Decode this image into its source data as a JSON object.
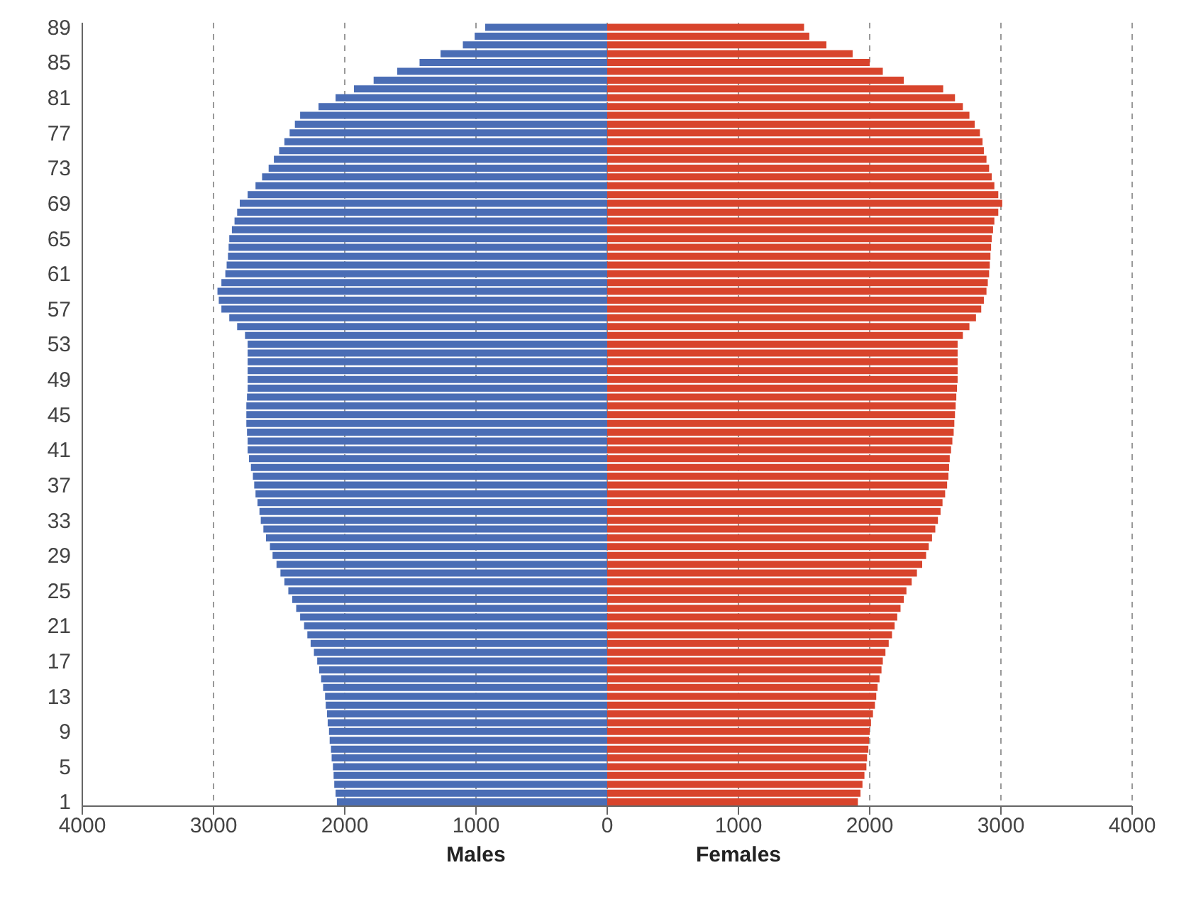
{
  "chart_data": {
    "type": "bar",
    "orientation": "horizontal",
    "stacked": true,
    "legend": false,
    "grid": "x",
    "categories": [
      "89",
      null,
      null,
      null,
      "85",
      null,
      null,
      null,
      "81",
      null,
      null,
      null,
      "77",
      null,
      null,
      null,
      "73",
      null,
      null,
      null,
      "69",
      null,
      null,
      null,
      "65",
      null,
      null,
      null,
      "61",
      null,
      null,
      null,
      "57",
      null,
      null,
      null,
      "53",
      null,
      null,
      null,
      "49",
      null,
      null,
      null,
      "45",
      null,
      null,
      null,
      "41",
      null,
      null,
      null,
      "37",
      null,
      null,
      null,
      "33",
      null,
      null,
      null,
      "29",
      null,
      null,
      null,
      "25",
      null,
      null,
      null,
      "21",
      null,
      null,
      null,
      "17",
      null,
      null,
      null,
      "13",
      null,
      null,
      null,
      "9",
      null,
      null,
      null,
      "5",
      null,
      null,
      null,
      "1"
    ],
    "xlim": [
      -4000,
      4000
    ],
    "xticks": [
      {
        "value": -4000,
        "label": "4000"
      },
      {
        "value": -3000,
        "label": "3000"
      },
      {
        "value": -2000,
        "label": "2000"
      },
      {
        "value": -1000,
        "label": "1000"
      },
      0,
      1000,
      2000,
      3000,
      4000
    ],
    "series": [
      {
        "name": "Males",
        "color": "#4a6db5",
        "values": [
          -930,
          -1010,
          -1100,
          -1270,
          -1430,
          -1600,
          -1780,
          -1930,
          -2070,
          -2200,
          -2340,
          -2380,
          -2420,
          -2460,
          -2500,
          -2540,
          -2580,
          -2630,
          -2680,
          -2740,
          -2800,
          -2820,
          -2840,
          -2860,
          -2880,
          -2885,
          -2890,
          -2900,
          -2910,
          -2940,
          -2970,
          -2960,
          -2940,
          -2880,
          -2820,
          -2760,
          -2740,
          -2740,
          -2740,
          -2740,
          -2740,
          -2740,
          -2745,
          -2750,
          -2750,
          -2750,
          -2745,
          -2740,
          -2740,
          -2730,
          -2715,
          -2700,
          -2690,
          -2680,
          -2665,
          -2650,
          -2640,
          -2620,
          -2600,
          -2570,
          -2550,
          -2520,
          -2490,
          -2460,
          -2430,
          -2400,
          -2370,
          -2340,
          -2310,
          -2285,
          -2260,
          -2235,
          -2210,
          -2195,
          -2180,
          -2165,
          -2150,
          -2145,
          -2135,
          -2130,
          -2120,
          -2115,
          -2105,
          -2100,
          -2090,
          -2085,
          -2080,
          -2070,
          -2060
        ]
      },
      {
        "name": "Females",
        "color": "#d8442c",
        "values": [
          1500,
          1540,
          1670,
          1870,
          2000,
          2100,
          2260,
          2560,
          2650,
          2710,
          2760,
          2800,
          2840,
          2860,
          2870,
          2890,
          2910,
          2930,
          2950,
          2980,
          3010,
          2980,
          2950,
          2940,
          2930,
          2925,
          2920,
          2915,
          2910,
          2900,
          2890,
          2870,
          2850,
          2810,
          2760,
          2710,
          2670,
          2670,
          2670,
          2670,
          2670,
          2665,
          2660,
          2655,
          2650,
          2645,
          2640,
          2630,
          2620,
          2610,
          2605,
          2600,
          2590,
          2575,
          2555,
          2540,
          2520,
          2500,
          2475,
          2450,
          2430,
          2400,
          2360,
          2320,
          2280,
          2260,
          2235,
          2210,
          2190,
          2170,
          2145,
          2120,
          2100,
          2090,
          2075,
          2060,
          2050,
          2040,
          2025,
          2010,
          2000,
          1995,
          1990,
          1980,
          1975,
          1960,
          1945,
          1930,
          1910
        ]
      }
    ]
  }
}
